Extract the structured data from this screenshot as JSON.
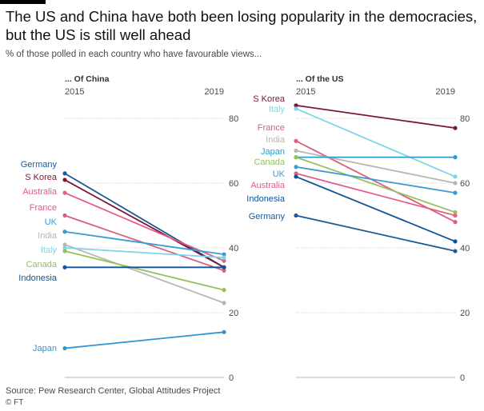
{
  "title": "The US and China have both been losing popularity in the democracies, but the US is still well ahead",
  "subtitle": "% of those polled in each country who have favourable views...",
  "source": "Source: Pew Research Center, Global Attitudes Project",
  "copyright": "© FT",
  "colors": {
    "Germany": "#1c5a94",
    "S Korea": "#7b1739",
    "Australia": "#e55d8c",
    "France": "#d9607f",
    "UK": "#3d9bd3",
    "India": "#b9b6b1",
    "Italy": "#7dd5e8",
    "Canada": "#96c15b",
    "Indonesia": "#0f5499",
    "Japan": "#2f96cf",
    "Japan_us": "#2e9ccc"
  },
  "chart_data": [
    {
      "type": "line",
      "title": "... Of China",
      "x": [
        "2015",
        "2019"
      ],
      "ylim": [
        0,
        80
      ],
      "yticks": [
        0,
        20,
        40,
        60,
        80
      ],
      "grid": true,
      "series": [
        {
          "name": "Germany",
          "values": [
            63,
            34
          ]
        },
        {
          "name": "S Korea",
          "values": [
            61,
            34
          ]
        },
        {
          "name": "Australia",
          "values": [
            57,
            36
          ]
        },
        {
          "name": "France",
          "values": [
            50,
            33
          ]
        },
        {
          "name": "UK",
          "values": [
            45,
            38
          ]
        },
        {
          "name": "India",
          "values": [
            41,
            23
          ]
        },
        {
          "name": "Italy",
          "values": [
            40,
            37
          ]
        },
        {
          "name": "Canada",
          "values": [
            39,
            27
          ]
        },
        {
          "name": "Indonesia",
          "values": [
            34,
            34
          ]
        },
        {
          "name": "Japan",
          "values": [
            9,
            14
          ]
        }
      ]
    },
    {
      "type": "line",
      "title": "... Of the US",
      "x": [
        "2015",
        "2019"
      ],
      "ylim": [
        0,
        80
      ],
      "yticks": [
        0,
        20,
        40,
        60,
        80
      ],
      "grid": true,
      "series": [
        {
          "name": "S Korea",
          "values": [
            84,
            77
          ]
        },
        {
          "name": "Italy",
          "values": [
            83,
            62
          ]
        },
        {
          "name": "France",
          "values": [
            73,
            48
          ]
        },
        {
          "name": "India",
          "values": [
            70,
            60
          ]
        },
        {
          "name": "Japan",
          "values": [
            68,
            68
          ]
        },
        {
          "name": "Canada",
          "values": [
            68,
            51
          ]
        },
        {
          "name": "UK",
          "values": [
            65,
            57
          ]
        },
        {
          "name": "Australia",
          "values": [
            63,
            50
          ]
        },
        {
          "name": "Indonesia",
          "values": [
            62,
            42
          ]
        },
        {
          "name": "Germany",
          "values": [
            50,
            39
          ]
        }
      ]
    }
  ]
}
